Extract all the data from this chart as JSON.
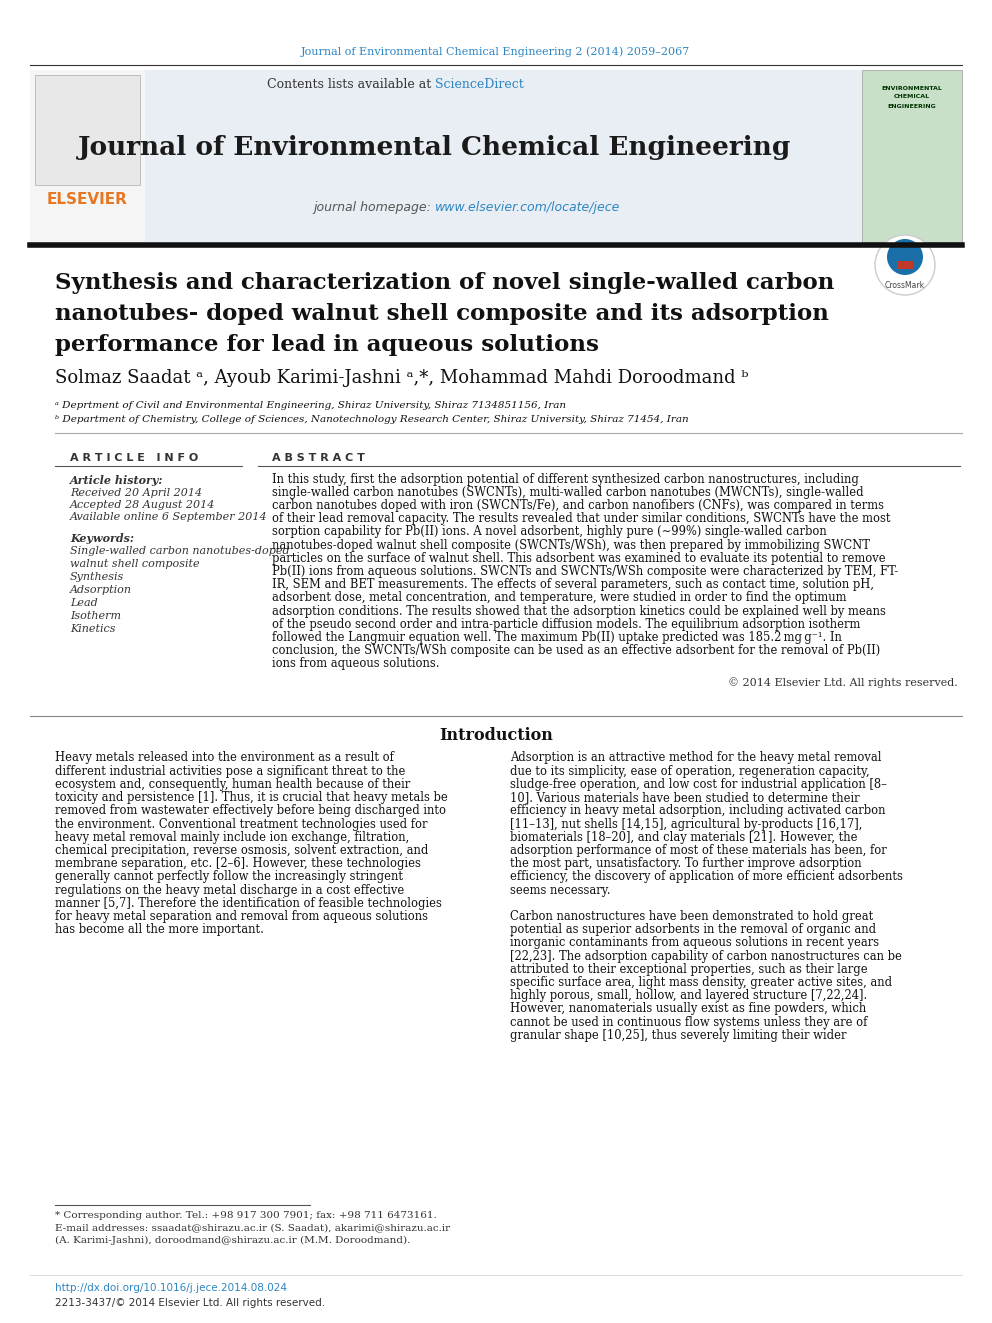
{
  "page_bg": "#ffffff",
  "top_journal_ref": "Journal of Environmental Chemical Engineering 2 (2014) 2059–2067",
  "top_journal_ref_color": "#2e86c1",
  "header_bg": "#e8eef4",
  "header_title": "Journal of Environmental Chemical Engineering",
  "header_title_color": "#1a1a1a",
  "header_homepage_label": "journal homepage: ",
  "header_homepage_url": "www.elsevier.com/locate/jece",
  "header_homepage_color": "#2e86c1",
  "elsevier_color": "#e87722",
  "article_title_line1": "Synthesis and characterization of novel single-walled carbon",
  "article_title_line2": "nanotubes- doped walnut shell composite and its adsorption",
  "article_title_line3": "performance for lead in aqueous solutions",
  "authors_line": "Solmaz Saadat ᵃ, Ayoub Karimi-Jashni ᵃ,*, Mohammad Mahdi Doroodmand ᵇ",
  "affil_a": "ᵃ Deprtment of Civil and Environmental Engineering, Shiraz University, Shiraz 7134851156, Iran",
  "affil_b": "ᵇ Department of Chemistry, College of Sciences, Nanotechnology Research Center, Shiraz University, Shiraz 71454, Iran",
  "article_info_header": "A R T I C L E   I N F O",
  "abstract_header": "A B S T R A C T",
  "article_history_label": "Article history:",
  "received": "Received 20 April 2014",
  "accepted": "Accepted 28 August 2014",
  "available": "Available online 6 September 2014",
  "keywords_label": "Keywords:",
  "keywords": [
    "Single-walled carbon nanotubes-doped",
    "walnut shell composite",
    "Synthesis",
    "Adsorption",
    "Lead",
    "Isotherm",
    "Kinetics"
  ],
  "abstract_lines": [
    "In this study, first the adsorption potential of different synthesized carbon nanostructures, including",
    "single-walled carbon nanotubes (SWCNTs), multi-walled carbon nanotubes (MWCNTs), single-walled",
    "carbon nanotubes doped with iron (SWCNTs/Fe), and carbon nanofibers (CNFs), was compared in terms",
    "of their lead removal capacity. The results revealed that under similar conditions, SWCNTs have the most",
    "sorption capability for Pb(II) ions. A novel adsorbent, highly pure (∼99%) single-walled carbon",
    "nanotubes-doped walnut shell composite (SWCNTs/WSh), was then prepared by immobilizing SWCNT",
    "particles on the surface of walnut shell. This adsorbent was examined to evaluate its potential to remove",
    "Pb(II) ions from aqueous solutions. SWCNTs and SWCNTs/WSh composite were characterized by TEM, FT-",
    "IR, SEM and BET measurements. The effects of several parameters, such as contact time, solution pH,",
    "adsorbent dose, metal concentration, and temperature, were studied in order to find the optimum",
    "adsorption conditions. The results showed that the adsorption kinetics could be explained well by means",
    "of the pseudo second order and intra-particle diffusion models. The equilibrium adsorption isotherm",
    "followed the Langmuir equation well. The maximum Pb(II) uptake predicted was 185.2 mg g⁻¹. In",
    "conclusion, the SWCNTs/WSh composite can be used as an effective adsorbent for the removal of Pb(II)",
    "ions from aqueous solutions."
  ],
  "copyright": "© 2014 Elsevier Ltd. All rights reserved.",
  "intro_header": "Introduction",
  "left_intro_lines": [
    "Heavy metals released into the environment as a result of",
    "different industrial activities pose a significant threat to the",
    "ecosystem and, consequently, human health because of their",
    "toxicity and persistence [1]. Thus, it is crucial that heavy metals be",
    "removed from wastewater effectively before being discharged into",
    "the environment. Conventional treatment technologies used for",
    "heavy metal removal mainly include ion exchange, filtration,",
    "chemical precipitation, reverse osmosis, solvent extraction, and",
    "membrane separation, etc. [2–6]. However, these technologies",
    "generally cannot perfectly follow the increasingly stringent",
    "regulations on the heavy metal discharge in a cost effective",
    "manner [5,7]. Therefore the identification of feasible technologies",
    "for heavy metal separation and removal from aqueous solutions",
    "has become all the more important."
  ],
  "right_intro_lines": [
    "Adsorption is an attractive method for the heavy metal removal",
    "due to its simplicity, ease of operation, regeneration capacity,",
    "sludge-free operation, and low cost for industrial application [8–",
    "10]. Various materials have been studied to determine their",
    "efficiency in heavy metal adsorption, including activated carbon",
    "[11–13], nut shells [14,15], agricultural by-products [16,17],",
    "biomaterials [18–20], and clay materials [21]. However, the",
    "adsorption performance of most of these materials has been, for",
    "the most part, unsatisfactory. To further improve adsorption",
    "efficiency, the discovery of application of more efficient adsorbents",
    "seems necessary.",
    "",
    "Carbon nanostructures have been demonstrated to hold great",
    "potential as superior adsorbents in the removal of organic and",
    "inorganic contaminants from aqueous solutions in recent years",
    "[22,23]. The adsorption capability of carbon nanostructures can be",
    "attributed to their exceptional properties, such as their large",
    "specific surface area, light mass density, greater active sites, and",
    "highly porous, small, hollow, and layered structure [7,22,24].",
    "However, nanomaterials usually exist as fine powders, which",
    "cannot be used in continuous flow systems unless they are of",
    "granular shape [10,25], thus severely limiting their wider"
  ],
  "footnote_star": "* Corresponding author. Tel.: +98 917 300 7901; fax: +98 711 6473161.",
  "footnote_email1": "E-mail addresses: ssaadat@shirazu.ac.ir (S. Saadat), akarimi@shirazu.ac.ir",
  "footnote_email2": "(A. Karimi-Jashni), doroodmand@shirazu.ac.ir (M.M. Doroodmand).",
  "footer_doi": "http://dx.doi.org/10.1016/j.jece.2014.08.024",
  "footer_issn": "2213-3437/© 2014 Elsevier Ltd. All rights reserved.",
  "link_color": "#2e86c1",
  "text_color": "#111111",
  "gray_color": "#333333"
}
